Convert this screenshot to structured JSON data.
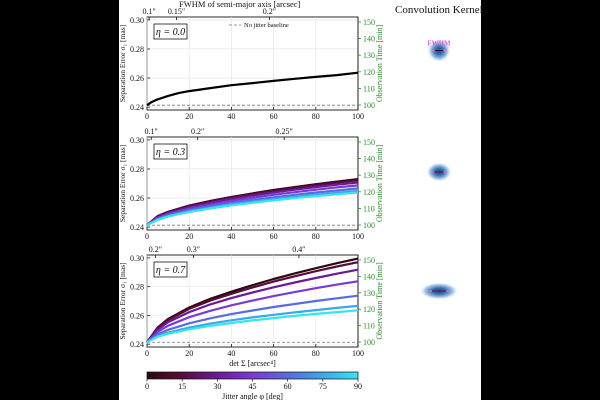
{
  "figure": {
    "kernel_title": "Convolution Kernel",
    "fwhm_label": "FWHM",
    "colors": {
      "observation_axis": "#2e8b2e",
      "baseline": "#777777",
      "kernel_marker": "#d56ad5"
    },
    "colorbar": {
      "label": "Jitter angle φ [deg]",
      "ticks": [
        0,
        15,
        30,
        45,
        60,
        75,
        90
      ],
      "colormap": [
        "#2a0a0f",
        "#5a0c3a",
        "#6a1b9a",
        "#7a3ad4",
        "#5a6ae0",
        "#3aa8ea",
        "#37e5ef"
      ]
    }
  },
  "chart_data": [
    {
      "type": "line",
      "panel_label": "η = 0.0",
      "top_axis_title": "FWHM of semi-major axis [arcsec]",
      "top_ticks": [
        {
          "x": 1,
          "label": "0.1″"
        },
        {
          "x": 14,
          "label": "0.15″"
        },
        {
          "x": 58,
          "label": "0.2″"
        }
      ],
      "xlabel": "",
      "ylabel": "Separation Error σ₁ [mas]",
      "y2label": "Observation Time [min]",
      "xlim": [
        0,
        100
      ],
      "ylim": [
        0.238,
        0.302
      ],
      "yticks": [
        0.24,
        0.26,
        0.28,
        0.3
      ],
      "xticks": [
        0,
        20,
        40,
        60,
        80,
        100
      ],
      "y2ticks": [
        100,
        110,
        120,
        130,
        140,
        150
      ],
      "baseline": {
        "label": "No jitter baseline",
        "y": 0.2413
      },
      "series": [
        {
          "x": [
            0,
            2,
            5,
            10,
            15,
            20,
            30,
            40,
            50,
            60,
            70,
            80,
            90,
            100
          ],
          "values": [
            0.2413,
            0.2433,
            0.2453,
            0.2477,
            0.2496,
            0.251,
            0.2531,
            0.2551,
            0.2565,
            0.258,
            0.2595,
            0.2608,
            0.262,
            0.2637
          ],
          "color": "#000000"
        }
      ]
    },
    {
      "type": "line",
      "panel_label": "η = 0.3",
      "top_ticks": [
        {
          "x": 2,
          "label": "0.1″"
        },
        {
          "x": 24,
          "label": "0.2″"
        },
        {
          "x": 65,
          "label": "0.25″"
        }
      ],
      "xlabel": "",
      "ylabel": "Separation Error σ₁ [mas]",
      "y2label": "Observation Time [min]",
      "xlim": [
        0,
        100
      ],
      "ylim": [
        0.238,
        0.302
      ],
      "yticks": [
        0.24,
        0.26,
        0.28,
        0.3
      ],
      "xticks": [
        0,
        20,
        40,
        60,
        80,
        100
      ],
      "y2ticks": [
        100,
        110,
        120,
        130,
        140,
        150
      ],
      "baseline": {
        "y": 0.2413
      },
      "x": [
        0,
        5,
        10,
        20,
        30,
        40,
        50,
        60,
        70,
        80,
        90,
        100
      ],
      "series": [
        {
          "values": [
            0.2413,
            0.2475,
            0.2505,
            0.2548,
            0.258,
            0.2608,
            0.2632,
            0.2655,
            0.2675,
            0.2695,
            0.2713,
            0.273
          ],
          "color": "#2a0a0f"
        },
        {
          "values": [
            0.2413,
            0.2472,
            0.2502,
            0.2544,
            0.2576,
            0.2603,
            0.2627,
            0.2649,
            0.2669,
            0.2688,
            0.2706,
            0.2722
          ],
          "color": "#5a0c3a"
        },
        {
          "values": [
            0.2413,
            0.2468,
            0.2497,
            0.2537,
            0.2568,
            0.2594,
            0.2617,
            0.2638,
            0.2657,
            0.2675,
            0.2692,
            0.2707
          ],
          "color": "#6a1b9a"
        },
        {
          "values": [
            0.2413,
            0.2462,
            0.249,
            0.2527,
            0.2556,
            0.258,
            0.2602,
            0.2622,
            0.264,
            0.2657,
            0.2673,
            0.2687
          ],
          "color": "#7a3ad4"
        },
        {
          "values": [
            0.2413,
            0.2457,
            0.2482,
            0.2517,
            0.2544,
            0.2567,
            0.2587,
            0.2605,
            0.2622,
            0.2638,
            0.2652,
            0.2666
          ],
          "color": "#5a6ae0"
        },
        {
          "values": [
            0.2413,
            0.2452,
            0.2476,
            0.2509,
            0.2534,
            0.2556,
            0.2575,
            0.2592,
            0.2608,
            0.2623,
            0.2637,
            0.2649
          ],
          "color": "#3aa8ea"
        },
        {
          "values": [
            0.2413,
            0.2449,
            0.2472,
            0.2503,
            0.2528,
            0.2549,
            0.2567,
            0.2584,
            0.2599,
            0.2613,
            0.2626,
            0.2638
          ],
          "color": "#37e5ef"
        }
      ]
    },
    {
      "type": "line",
      "panel_label": "η = 0.7",
      "top_ticks": [
        {
          "x": 4,
          "label": "0.2″"
        },
        {
          "x": 22,
          "label": "0.3″"
        },
        {
          "x": 72,
          "label": "0.4″"
        }
      ],
      "xlabel": "det Σ [arcsec⁴]",
      "ylabel": "Separation Error σ₁ [mas]",
      "y2label": "Observation Time [min]",
      "xlim": [
        0,
        100
      ],
      "ylim": [
        0.238,
        0.302
      ],
      "yticks": [
        0.24,
        0.26,
        0.28,
        0.3
      ],
      "xticks": [
        0,
        20,
        40,
        60,
        80,
        100
      ],
      "y2ticks": [
        100,
        110,
        120,
        130,
        140,
        150
      ],
      "baseline": {
        "y": 0.2413
      },
      "x": [
        0,
        5,
        10,
        20,
        30,
        40,
        50,
        60,
        70,
        80,
        90,
        100
      ],
      "series": [
        {
          "values": [
            0.2413,
            0.2515,
            0.2575,
            0.2655,
            0.2715,
            0.2765,
            0.281,
            0.2853,
            0.2892,
            0.2928,
            0.2963,
            0.2995
          ],
          "color": "#2a0a0f"
        },
        {
          "values": [
            0.2413,
            0.251,
            0.2568,
            0.2645,
            0.2703,
            0.275,
            0.2794,
            0.2835,
            0.2872,
            0.2907,
            0.294,
            0.297
          ],
          "color": "#5a0c3a"
        },
        {
          "values": [
            0.2413,
            0.25,
            0.2553,
            0.2623,
            0.2676,
            0.272,
            0.2759,
            0.2795,
            0.2829,
            0.286,
            0.289,
            0.2918
          ],
          "color": "#6a1b9a"
        },
        {
          "values": [
            0.2413,
            0.2485,
            0.2528,
            0.2587,
            0.2632,
            0.267,
            0.2703,
            0.2734,
            0.2762,
            0.2789,
            0.2814,
            0.2837
          ],
          "color": "#7a3ad4"
        },
        {
          "values": [
            0.2413,
            0.2468,
            0.25,
            0.2545,
            0.258,
            0.2609,
            0.2634,
            0.2658,
            0.2679,
            0.27,
            0.2719,
            0.2737
          ],
          "color": "#5a6ae0"
        },
        {
          "values": [
            0.2413,
            0.2456,
            0.248,
            0.2515,
            0.2543,
            0.2566,
            0.2586,
            0.2604,
            0.2621,
            0.2637,
            0.2652,
            0.2666
          ],
          "color": "#3aa8ea"
        },
        {
          "values": [
            0.2413,
            0.2451,
            0.2472,
            0.2503,
            0.2527,
            0.2547,
            0.2565,
            0.2581,
            0.2596,
            0.261,
            0.2623,
            0.2635
          ],
          "color": "#37e5ef"
        }
      ]
    }
  ]
}
